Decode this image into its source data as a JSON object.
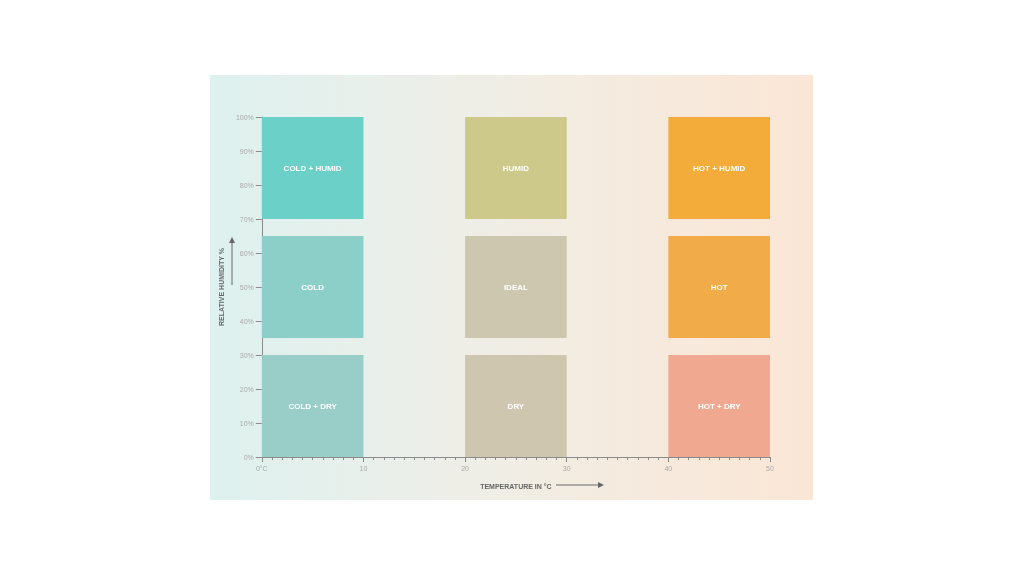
{
  "chart_data": {
    "type": "bar",
    "xlabel": "TEMPERATURE IN °C",
    "ylabel": "RELATIVE HUMIDITY %",
    "x": [
      5,
      25,
      45
    ],
    "series": [
      {
        "base": [
          0,
          0,
          0
        ],
        "values": [
          30,
          30,
          30
        ],
        "colors": [
          "#99cdc8",
          "#cfc6b0",
          "#f0a890"
        ],
        "value_labels": [
          "COLD + DRY",
          "DRY",
          "HOT + DRY"
        ]
      },
      {
        "base": [
          35,
          35,
          35
        ],
        "values": [
          30,
          30,
          30
        ],
        "colors": [
          "#8ccfc9",
          "#cec7b0",
          "#f1ab48"
        ],
        "value_labels": [
          "COLD",
          "IDEAL",
          "HOT"
        ]
      },
      {
        "base": [
          70,
          70,
          70
        ],
        "values": [
          30,
          30,
          30
        ],
        "colors": [
          "#6ad0c8",
          "#cdc98a",
          "#f3ab3a"
        ],
        "value_labels": [
          "COLD + HUMID",
          "HUMID",
          "HOT + HUMID"
        ]
      }
    ],
    "xlim": [
      0,
      50
    ],
    "xticks": [
      {
        "value": 0,
        "label": "0°C"
      },
      10,
      20,
      30,
      40,
      50
    ],
    "ylim": [
      0,
      100
    ],
    "yticks": [
      {
        "value": 0,
        "label": "0%"
      },
      {
        "value": 10,
        "label": "10%"
      },
      {
        "value": 20,
        "label": "20%"
      },
      {
        "value": 30,
        "label": "30%"
      },
      {
        "value": 40,
        "label": "40%"
      },
      {
        "value": 50,
        "label": "50%"
      },
      {
        "value": 60,
        "label": "60%"
      },
      {
        "value": 70,
        "label": "70%"
      },
      {
        "value": 80,
        "label": "80%"
      },
      {
        "value": 90,
        "label": "90%"
      },
      {
        "value": 100,
        "label": "100%"
      }
    ],
    "grid": false
  }
}
